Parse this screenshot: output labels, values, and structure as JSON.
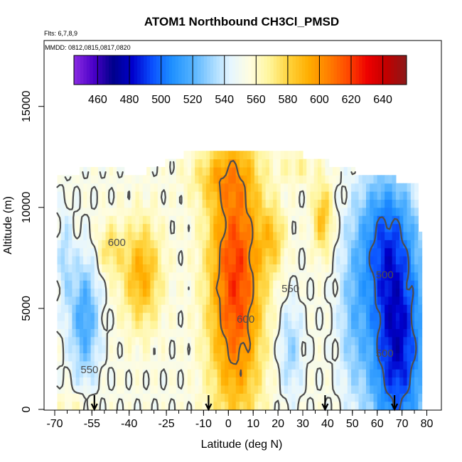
{
  "chart_data": {
    "type": "heatmap",
    "title": "ATOM1 Northbound CH3Cl_PMSD",
    "subtitle_flights": "Flts: 6,7,8,9",
    "subtitle_dates": "MMDD: 0812,0815,0817,0820",
    "xlabel": "Latitude (deg N)",
    "ylabel": "Altitude (m)",
    "xlim": [
      -70,
      80
    ],
    "ylim": [
      0,
      17500
    ],
    "x_ticks": [
      -70,
      -55,
      -40,
      -25,
      -10,
      0,
      10,
      20,
      30,
      40,
      50,
      60,
      70,
      80
    ],
    "x_tick_labels": [
      "-70",
      "-55",
      "-40",
      "-25",
      "-10",
      "0",
      "10",
      "20",
      "30",
      "40",
      "50",
      "60",
      "70",
      "80"
    ],
    "y_ticks": [
      0,
      5000,
      10000,
      15000
    ],
    "y_tick_labels": [
      "0",
      "5000",
      "10000",
      "15000"
    ],
    "colorbar": {
      "min": 445,
      "max": 655,
      "ticks": [
        460,
        480,
        500,
        520,
        540,
        560,
        580,
        600,
        620,
        640
      ],
      "tick_labels": [
        "460",
        "480",
        "500",
        "520",
        "540",
        "560",
        "580",
        "600",
        "620",
        "640"
      ],
      "colors": [
        "#8a2be2",
        "#4b00c8",
        "#00008b",
        "#0000cd",
        "#0a50ff",
        "#1e90ff",
        "#4fb0ff",
        "#9dd6ff",
        "#e6f6ff",
        "#fffde0",
        "#fff59a",
        "#ffd23a",
        "#ffae00",
        "#ff8000",
        "#ff4800",
        "#ee0000",
        "#c00000",
        "#8b1a1a"
      ]
    },
    "contour_levels": [
      500,
      550,
      600
    ],
    "contour_labels": [
      {
        "text": "600",
        "lat": -45,
        "alt": 8100
      },
      {
        "text": "550",
        "lat": 25,
        "alt": 5800
      },
      {
        "text": "600",
        "lat": 7,
        "alt": 4300
      },
      {
        "text": "500",
        "lat": 63,
        "alt": 6500
      },
      {
        "text": "500",
        "lat": 63,
        "alt": 2600
      },
      {
        "text": "550",
        "lat": -56,
        "alt": 1800
      }
    ],
    "flight_markers_lat": [
      -54,
      -8,
      39,
      67
    ],
    "max_altitude_envelope": [
      {
        "lat": -69,
        "alt": 11500
      },
      {
        "lat": -60,
        "alt": 11800
      },
      {
        "lat": -50,
        "alt": 11900
      },
      {
        "lat": -35,
        "alt": 11700
      },
      {
        "lat": -20,
        "alt": 12500
      },
      {
        "lat": -10,
        "alt": 12900
      },
      {
        "lat": 20,
        "alt": 12800
      },
      {
        "lat": 35,
        "alt": 12500
      },
      {
        "lat": 45,
        "alt": 12000
      },
      {
        "lat": 60,
        "alt": 11500
      },
      {
        "lat": 76,
        "alt": 11300
      },
      {
        "lat": 78,
        "alt": 7500
      }
    ]
  }
}
